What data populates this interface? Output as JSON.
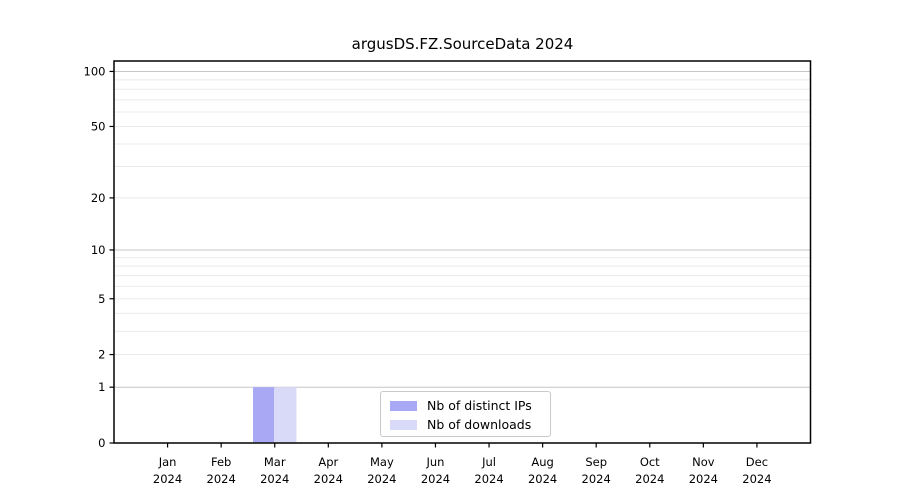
{
  "chart_data": {
    "type": "bar",
    "title": "argusDS.FZ.SourceData 2024",
    "categories": [
      [
        "Jan",
        "2024"
      ],
      [
        "Feb",
        "2024"
      ],
      [
        "Mar",
        "2024"
      ],
      [
        "Apr",
        "2024"
      ],
      [
        "May",
        "2024"
      ],
      [
        "Jun",
        "2024"
      ],
      [
        "Jul",
        "2024"
      ],
      [
        "Aug",
        "2024"
      ],
      [
        "Sep",
        "2024"
      ],
      [
        "Oct",
        "2024"
      ],
      [
        "Nov",
        "2024"
      ],
      [
        "Dec",
        "2024"
      ]
    ],
    "series": [
      {
        "name": "Nb of distinct IPs",
        "color": "#a8a8f5",
        "values": [
          0,
          0,
          1,
          0,
          0,
          0,
          0,
          0,
          0,
          0,
          0,
          0
        ]
      },
      {
        "name": "Nb of downloads",
        "color": "#d9d9f8",
        "values": [
          0,
          0,
          1,
          0,
          0,
          0,
          0,
          0,
          0,
          0,
          0,
          0
        ]
      }
    ],
    "xlabel": "",
    "ylabel": "",
    "yscale": "log1p",
    "ylim": [
      0,
      114
    ],
    "yticks": [
      0,
      1,
      2,
      5,
      10,
      20,
      50,
      100
    ],
    "grid": {
      "minor_values": [
        2,
        3,
        4,
        5,
        6,
        7,
        8,
        9,
        20,
        30,
        40,
        50,
        60,
        70,
        80,
        90
      ],
      "major_values": [
        1,
        10,
        100
      ],
      "minor_color": "#ebebeb",
      "major_color": "#c6c6c6"
    },
    "legend_position": "lower center",
    "colors": {
      "axis": "#000000",
      "tick_label": "#000000",
      "background": "#ffffff"
    }
  }
}
